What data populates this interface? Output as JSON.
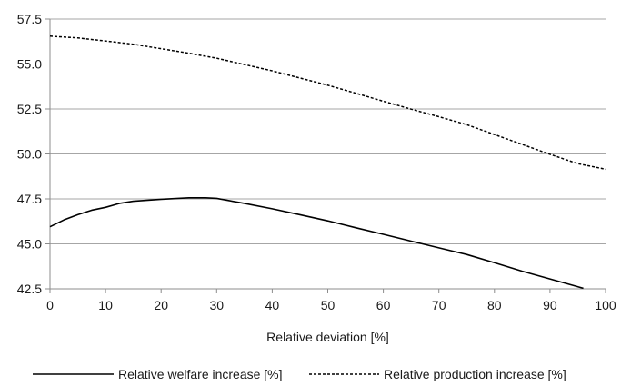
{
  "chart_data": {
    "type": "line",
    "title": "",
    "xlabel": "Relative deviation [%]",
    "ylabel": "",
    "xlim": [
      0,
      100
    ],
    "ylim": [
      42.5,
      57.5
    ],
    "xticks": [
      0,
      10,
      20,
      30,
      40,
      50,
      60,
      70,
      80,
      90,
      100
    ],
    "yticks": [
      "42.5",
      "45.0",
      "47.5",
      "50.0",
      "52.5",
      "55.0",
      "57.5"
    ],
    "grid": "horizontal",
    "legend_position": "bottom",
    "series": [
      {
        "name": "Relative welfare increase [%]",
        "style": "solid",
        "color": "#000000",
        "x": [
          0,
          2.5,
          5,
          7.5,
          10,
          12.5,
          15,
          20,
          25,
          28,
          30,
          35,
          40,
          45,
          50,
          55,
          60,
          65,
          70,
          75,
          80,
          85,
          90,
          96
        ],
        "y": [
          45.95,
          46.33,
          46.62,
          46.87,
          47.03,
          47.25,
          47.37,
          47.48,
          47.56,
          47.56,
          47.53,
          47.25,
          46.95,
          46.62,
          46.28,
          45.9,
          45.53,
          45.15,
          44.78,
          44.41,
          43.95,
          43.48,
          43.05,
          42.53
        ]
      },
      {
        "name": "Relative production increase [%]",
        "style": "dashed",
        "color": "#000000",
        "x": [
          0,
          5,
          10,
          15,
          20,
          25,
          30,
          35,
          40,
          45,
          50,
          55,
          60,
          65,
          70,
          75,
          80,
          85,
          90,
          95,
          100
        ],
        "y": [
          56.55,
          56.45,
          56.28,
          56.1,
          55.85,
          55.6,
          55.32,
          54.97,
          54.62,
          54.22,
          53.82,
          53.38,
          52.93,
          52.49,
          52.07,
          51.63,
          51.08,
          50.53,
          49.98,
          49.46,
          49.15
        ]
      }
    ]
  }
}
